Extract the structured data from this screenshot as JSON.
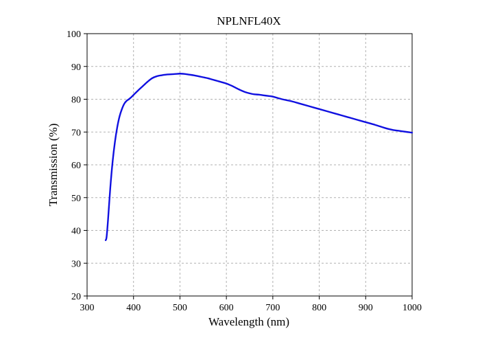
{
  "chart_data": {
    "type": "line",
    "title": "NPLNFL40X",
    "xlabel": "Wavelength (nm)",
    "ylabel": "Transmission (%)",
    "xlim": [
      300,
      1000
    ],
    "ylim": [
      20,
      100
    ],
    "xticks": [
      300,
      400,
      500,
      600,
      700,
      800,
      900,
      1000
    ],
    "yticks": [
      20,
      30,
      40,
      50,
      60,
      70,
      80,
      90,
      100
    ],
    "grid": true,
    "grid_style": "dashed",
    "line_color": "#1010e0",
    "series": [
      {
        "x": [
          340,
          342,
          345,
          350,
          355,
          360,
          365,
          370,
          375,
          380,
          385,
          390,
          395,
          400,
          410,
          420,
          430,
          440,
          450,
          460,
          470,
          480,
          490,
          500,
          510,
          520,
          530,
          540,
          550,
          560,
          570,
          580,
          590,
          600,
          610,
          620,
          630,
          640,
          650,
          660,
          670,
          680,
          690,
          700,
          720,
          740,
          760,
          780,
          800,
          820,
          840,
          860,
          880,
          900,
          920,
          940,
          950,
          960,
          970,
          980,
          990,
          1000
        ],
        "y": [
          37,
          38,
          43,
          53,
          61,
          67,
          71.5,
          74.8,
          77,
          78.6,
          79.5,
          80,
          80.6,
          81.3,
          82.7,
          84,
          85.3,
          86.4,
          87,
          87.3,
          87.5,
          87.6,
          87.7,
          87.8,
          87.7,
          87.5,
          87.3,
          87,
          86.7,
          86.4,
          86,
          85.6,
          85.2,
          84.8,
          84.2,
          83.5,
          82.8,
          82.2,
          81.8,
          81.5,
          81.4,
          81.2,
          81,
          80.8,
          80,
          79.4,
          78.6,
          77.8,
          77,
          76.2,
          75.4,
          74.6,
          73.8,
          73,
          72.2,
          71.3,
          70.9,
          70.6,
          70.4,
          70.2,
          70,
          69.8
        ]
      }
    ]
  }
}
